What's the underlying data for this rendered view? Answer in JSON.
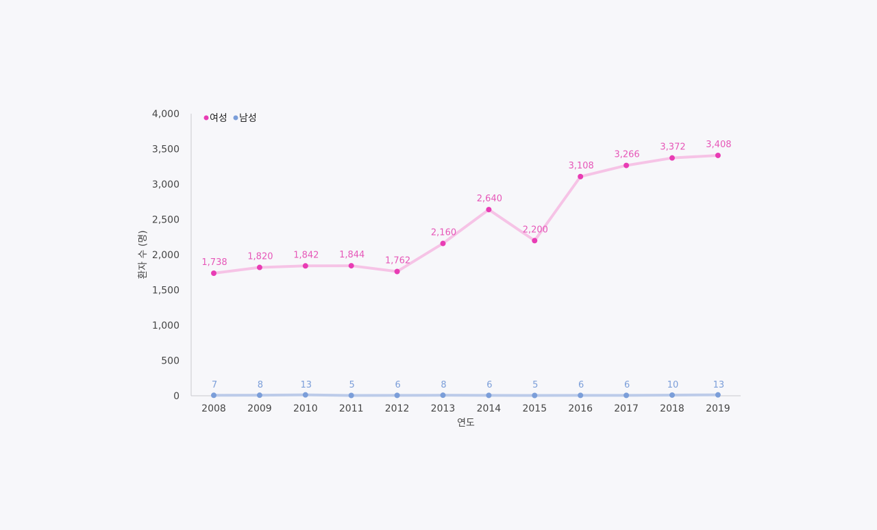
{
  "chart_data": {
    "type": "line",
    "xlabel": "연도",
    "ylabel": "환자 수 (명)",
    "ylim": [
      0,
      4000
    ],
    "yticks": [
      0,
      500,
      1000,
      1500,
      2000,
      2500,
      3000,
      3500,
      4000
    ],
    "ytick_labels": [
      "0",
      "500",
      "1,000",
      "1,500",
      "2,000",
      "2,500",
      "3,000",
      "3,500",
      "4,000"
    ],
    "categories": [
      "2008",
      "2009",
      "2010",
      "2011",
      "2012",
      "2013",
      "2014",
      "2015",
      "2016",
      "2017",
      "2018",
      "2019"
    ],
    "grid": false,
    "legend_position": "top-left",
    "series": [
      {
        "name": "여성",
        "color": "#e83cb4",
        "line_color": "#f6c3e6",
        "label_color": "#e657b8",
        "values": [
          1738,
          1820,
          1842,
          1844,
          1762,
          2160,
          2640,
          2200,
          3108,
          3266,
          3372,
          3408
        ],
        "labels": [
          "1,738",
          "1,820",
          "1,842",
          "1,844",
          "1,762",
          "2,160",
          "2,640",
          "2,200",
          "3,108",
          "3,266",
          "3,372",
          "3,408"
        ]
      },
      {
        "name": "남성",
        "color": "#7b9ed9",
        "line_color": "#bccbe9",
        "label_color": "#7b9ed9",
        "values": [
          7,
          8,
          13,
          5,
          6,
          8,
          6,
          5,
          6,
          6,
          10,
          13
        ],
        "labels": [
          "7",
          "8",
          "13",
          "5",
          "6",
          "8",
          "6",
          "5",
          "6",
          "6",
          "10",
          "13"
        ]
      }
    ]
  }
}
